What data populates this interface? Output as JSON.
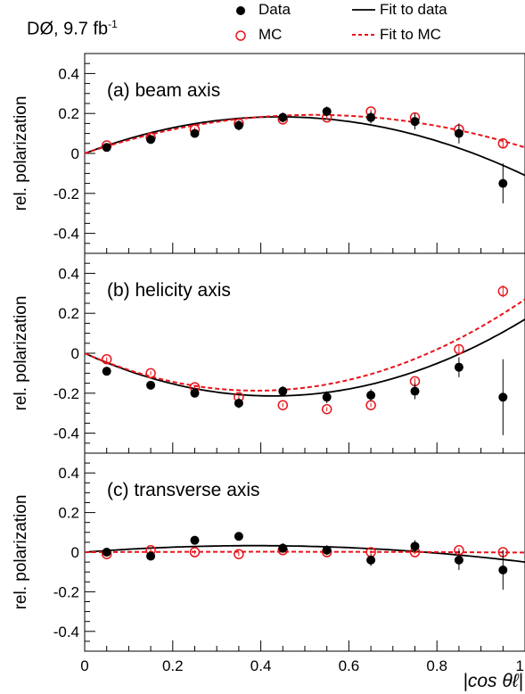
{
  "header": {
    "experiment": "DØ",
    "luminosity": "9.7 fb",
    "lumi_exp": "-1"
  },
  "legend": {
    "data": "Data",
    "mc": "MC",
    "fit_data": "Fit to data",
    "fit_mc": "Fit to MC"
  },
  "colors": {
    "data": "#000000",
    "mc": "#e8141b",
    "axis": "#000000"
  },
  "chart_data": [
    {
      "type": "scatter",
      "title": "(a) beam axis",
      "xlabel": "|cos θℓ|",
      "ylabel": "rel. polarization",
      "xlim": [
        0,
        1
      ],
      "ylim": [
        -0.5,
        0.5
      ],
      "yticks": [
        "0.4",
        "0.2",
        "0",
        "-0.2",
        "-0.4"
      ],
      "x": [
        0.05,
        0.15,
        0.25,
        0.35,
        0.45,
        0.55,
        0.65,
        0.75,
        0.85,
        0.95
      ],
      "series": [
        {
          "name": "Data",
          "values": [
            0.03,
            0.07,
            0.1,
            0.14,
            0.18,
            0.21,
            0.18,
            0.16,
            0.1,
            -0.15
          ],
          "errors": [
            0.02,
            0.02,
            0.02,
            0.025,
            0.025,
            0.025,
            0.03,
            0.04,
            0.05,
            0.1
          ]
        },
        {
          "name": "MC",
          "values": [
            0.04,
            0.08,
            0.12,
            0.15,
            0.17,
            0.18,
            0.21,
            0.18,
            0.12,
            0.05
          ],
          "errors": [
            0.01,
            0.01,
            0.01,
            0.01,
            0.01,
            0.01,
            0.01,
            0.015,
            0.015,
            0.02
          ]
        },
        {
          "name": "Fit to data",
          "fit": [
            0,
            0.83,
            -0.94
          ]
        },
        {
          "name": "Fit to MC",
          "fit": [
            0,
            0.74,
            -0.71
          ]
        }
      ]
    },
    {
      "type": "scatter",
      "title": "(b) helicity axis",
      "xlabel": "|cos θℓ|",
      "ylabel": "rel. polarization",
      "xlim": [
        0,
        1
      ],
      "ylim": [
        -0.5,
        0.5
      ],
      "yticks": [
        "0.4",
        "0.2",
        "0",
        "-0.2",
        "-0.4"
      ],
      "x": [
        0.05,
        0.15,
        0.25,
        0.35,
        0.45,
        0.55,
        0.65,
        0.75,
        0.85,
        0.95
      ],
      "series": [
        {
          "name": "Data",
          "values": [
            -0.09,
            -0.16,
            -0.2,
            -0.25,
            -0.19,
            -0.22,
            -0.21,
            -0.19,
            -0.07,
            -0.22
          ],
          "errors": [
            0.02,
            0.02,
            0.02,
            0.025,
            0.025,
            0.03,
            0.03,
            0.04,
            0.05,
            0.19
          ]
        },
        {
          "name": "MC",
          "values": [
            -0.03,
            -0.1,
            -0.17,
            -0.22,
            -0.26,
            -0.28,
            -0.26,
            -0.14,
            0.02,
            0.31
          ],
          "errors": [
            0.01,
            0.01,
            0.01,
            0.01,
            0.01,
            0.01,
            0.01,
            0.015,
            0.02,
            0.03
          ]
        },
        {
          "name": "Fit to data",
          "fit": [
            0,
            -1.0,
            1.17
          ]
        },
        {
          "name": "Fit to MC",
          "fit": [
            0,
            -0.96,
            1.23
          ]
        }
      ]
    },
    {
      "type": "scatter",
      "title": "(c) transverse axis",
      "xlabel": "|cos θℓ|",
      "ylabel": "rel. polarization",
      "xlim": [
        0,
        1
      ],
      "ylim": [
        -0.5,
        0.5
      ],
      "yticks": [
        "0.4",
        "0.2",
        "0",
        "-0.2",
        "-0.4"
      ],
      "xticks": [
        "0",
        "0.2",
        "0.4",
        "0.6",
        "0.8",
        "1"
      ],
      "x": [
        0.05,
        0.15,
        0.25,
        0.35,
        0.45,
        0.55,
        0.65,
        0.75,
        0.85,
        0.95
      ],
      "series": [
        {
          "name": "Data",
          "values": [
            0.0,
            -0.02,
            0.06,
            0.08,
            0.02,
            0.01,
            -0.04,
            0.03,
            -0.04,
            -0.09
          ],
          "errors": [
            0.02,
            0.02,
            0.02,
            0.02,
            0.025,
            0.025,
            0.03,
            0.03,
            0.05,
            0.1
          ]
        },
        {
          "name": "MC",
          "values": [
            -0.01,
            0.01,
            0.0,
            -0.01,
            0.01,
            0.0,
            0.0,
            0.0,
            0.01,
            0.0
          ],
          "errors": [
            0.01,
            0.01,
            0.01,
            0.01,
            0.01,
            0.01,
            0.01,
            0.01,
            0.01,
            0.01
          ]
        },
        {
          "name": "Fit to data",
          "fit": [
            0,
            0.17,
            -0.22
          ]
        },
        {
          "name": "Fit to MC",
          "fit": [
            0,
            0.01,
            -0.012
          ]
        }
      ]
    }
  ]
}
